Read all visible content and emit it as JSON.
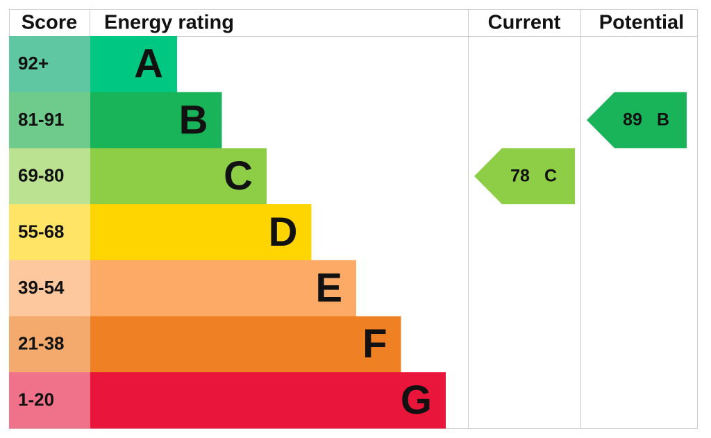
{
  "header": {
    "score": "Score",
    "rating": "Energy rating",
    "current": "Current",
    "potential": "Potential"
  },
  "bands": [
    {
      "score": "92+",
      "letter": "A",
      "color": "#00c781",
      "score_color": "#5fc8a2"
    },
    {
      "score": "81-91",
      "letter": "B",
      "color": "#19b459",
      "score_color": "#6fcb8c"
    },
    {
      "score": "69-80",
      "letter": "C",
      "color": "#8dce46",
      "score_color": "#bbe290"
    },
    {
      "score": "55-68",
      "letter": "D",
      "color": "#ffd500",
      "score_color": "#ffe466"
    },
    {
      "score": "39-54",
      "letter": "E",
      "color": "#fcaa65",
      "score_color": "#fdc89d"
    },
    {
      "score": "21-38",
      "letter": "F",
      "color": "#ef8023",
      "score_color": "#f4aa6c"
    },
    {
      "score": "1-20",
      "letter": "G",
      "color": "#e9153b",
      "score_color": "#f0728a"
    }
  ],
  "current": {
    "value": 78,
    "letter": "C"
  },
  "potential": {
    "value": 89,
    "letter": "B"
  }
}
